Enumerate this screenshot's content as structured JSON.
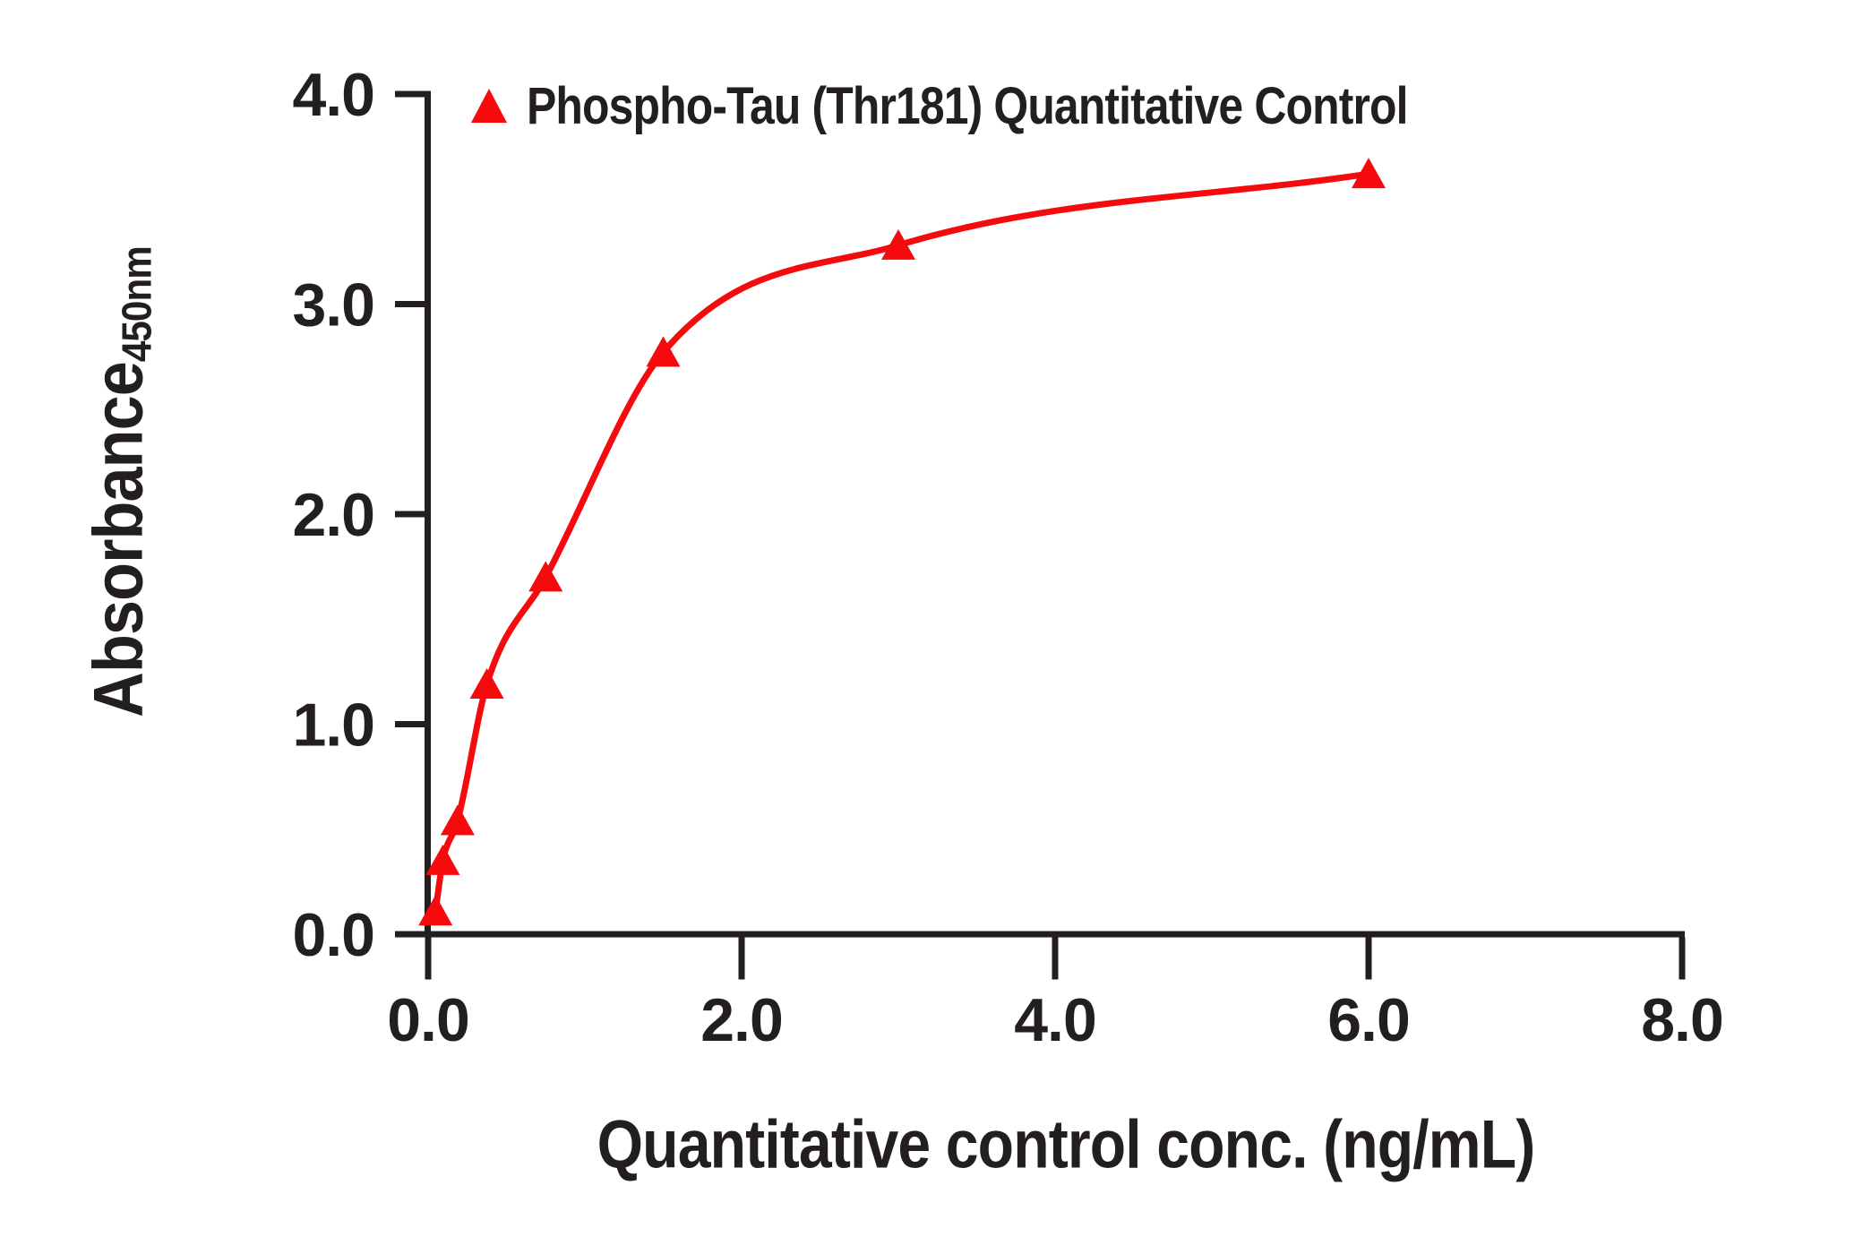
{
  "chart_data": {
    "type": "scatter",
    "series": [
      {
        "name": "Phospho-Tau (Thr181) Quantitative Control",
        "x": [
          0.047,
          0.094,
          0.188,
          0.375,
          0.75,
          1.5,
          3.0,
          6.0
        ],
        "y": [
          0.11,
          0.35,
          0.54,
          1.19,
          1.7,
          2.77,
          3.28,
          3.62
        ],
        "marker": "triangle-up",
        "color": "#f50a0e",
        "fit_curve": true
      }
    ],
    "title": "",
    "xlabel": "Quantitative control conc. (ng/mL)",
    "ylabel": "Absorbance",
    "ylabel_subscript": "450nm",
    "xlim": [
      0.0,
      8.0
    ],
    "ylim": [
      0.0,
      4.0
    ],
    "x_ticks": [
      0.0,
      2.0,
      4.0,
      6.0,
      8.0
    ],
    "x_tick_labels": [
      "0.0",
      "2.0",
      "4.0",
      "6.0",
      "8.0"
    ],
    "y_ticks": [
      0.0,
      1.0,
      2.0,
      3.0,
      4.0
    ],
    "y_tick_labels": [
      "0.0",
      "1.0",
      "2.0",
      "3.0",
      "4.0"
    ],
    "grid": false,
    "legend_position": "top-left-inside",
    "axis_color": "#231f20",
    "background": "#ffffff"
  }
}
